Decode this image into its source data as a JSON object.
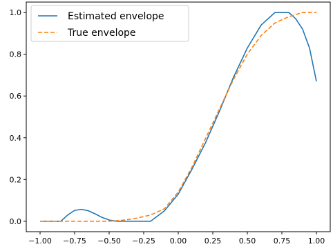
{
  "chart_data": {
    "type": "line",
    "xlim": [
      -1.1,
      1.1
    ],
    "ylim": [
      -0.05,
      1.05
    ],
    "xticks": [
      "-1.00",
      "-0.75",
      "-0.50",
      "-0.25",
      "0.00",
      "0.25",
      "0.50",
      "0.75",
      "1.00"
    ],
    "yticks": [
      "0.0",
      "0.2",
      "0.4",
      "0.6",
      "0.8",
      "1.0"
    ],
    "grid": false,
    "legend": "top-left",
    "series": [
      {
        "name": "Estimated envelope",
        "color": "#1f77b4",
        "dash": "solid",
        "x": [
          -1.0,
          -0.85,
          -0.8,
          -0.75,
          -0.7,
          -0.65,
          -0.6,
          -0.55,
          -0.5,
          -0.45,
          -0.4,
          -0.3,
          -0.2,
          -0.1,
          0.0,
          0.1,
          0.2,
          0.3,
          0.4,
          0.5,
          0.6,
          0.7,
          0.75,
          0.8,
          0.85,
          0.9,
          0.95,
          1.0
        ],
        "y": [
          0.0,
          0.0,
          0.03,
          0.052,
          0.057,
          0.05,
          0.035,
          0.018,
          0.006,
          0.0,
          0.0,
          0.0,
          0.0,
          0.05,
          0.13,
          0.25,
          0.38,
          0.53,
          0.69,
          0.83,
          0.94,
          1.0,
          1.0,
          1.0,
          0.97,
          0.92,
          0.83,
          0.67
        ]
      },
      {
        "name": "True envelope",
        "color": "#ff7f0e",
        "dash": "dashed",
        "x": [
          -1.0,
          -0.7,
          -0.5,
          -0.4,
          -0.3,
          -0.2,
          -0.1,
          0.0,
          0.1,
          0.2,
          0.3,
          0.4,
          0.5,
          0.6,
          0.7,
          0.8,
          0.9,
          1.0
        ],
        "y": [
          0.0,
          0.0,
          0.0,
          0.005,
          0.015,
          0.03,
          0.06,
          0.14,
          0.26,
          0.4,
          0.54,
          0.68,
          0.8,
          0.89,
          0.95,
          0.98,
          1.0,
          1.0
        ]
      }
    ]
  }
}
